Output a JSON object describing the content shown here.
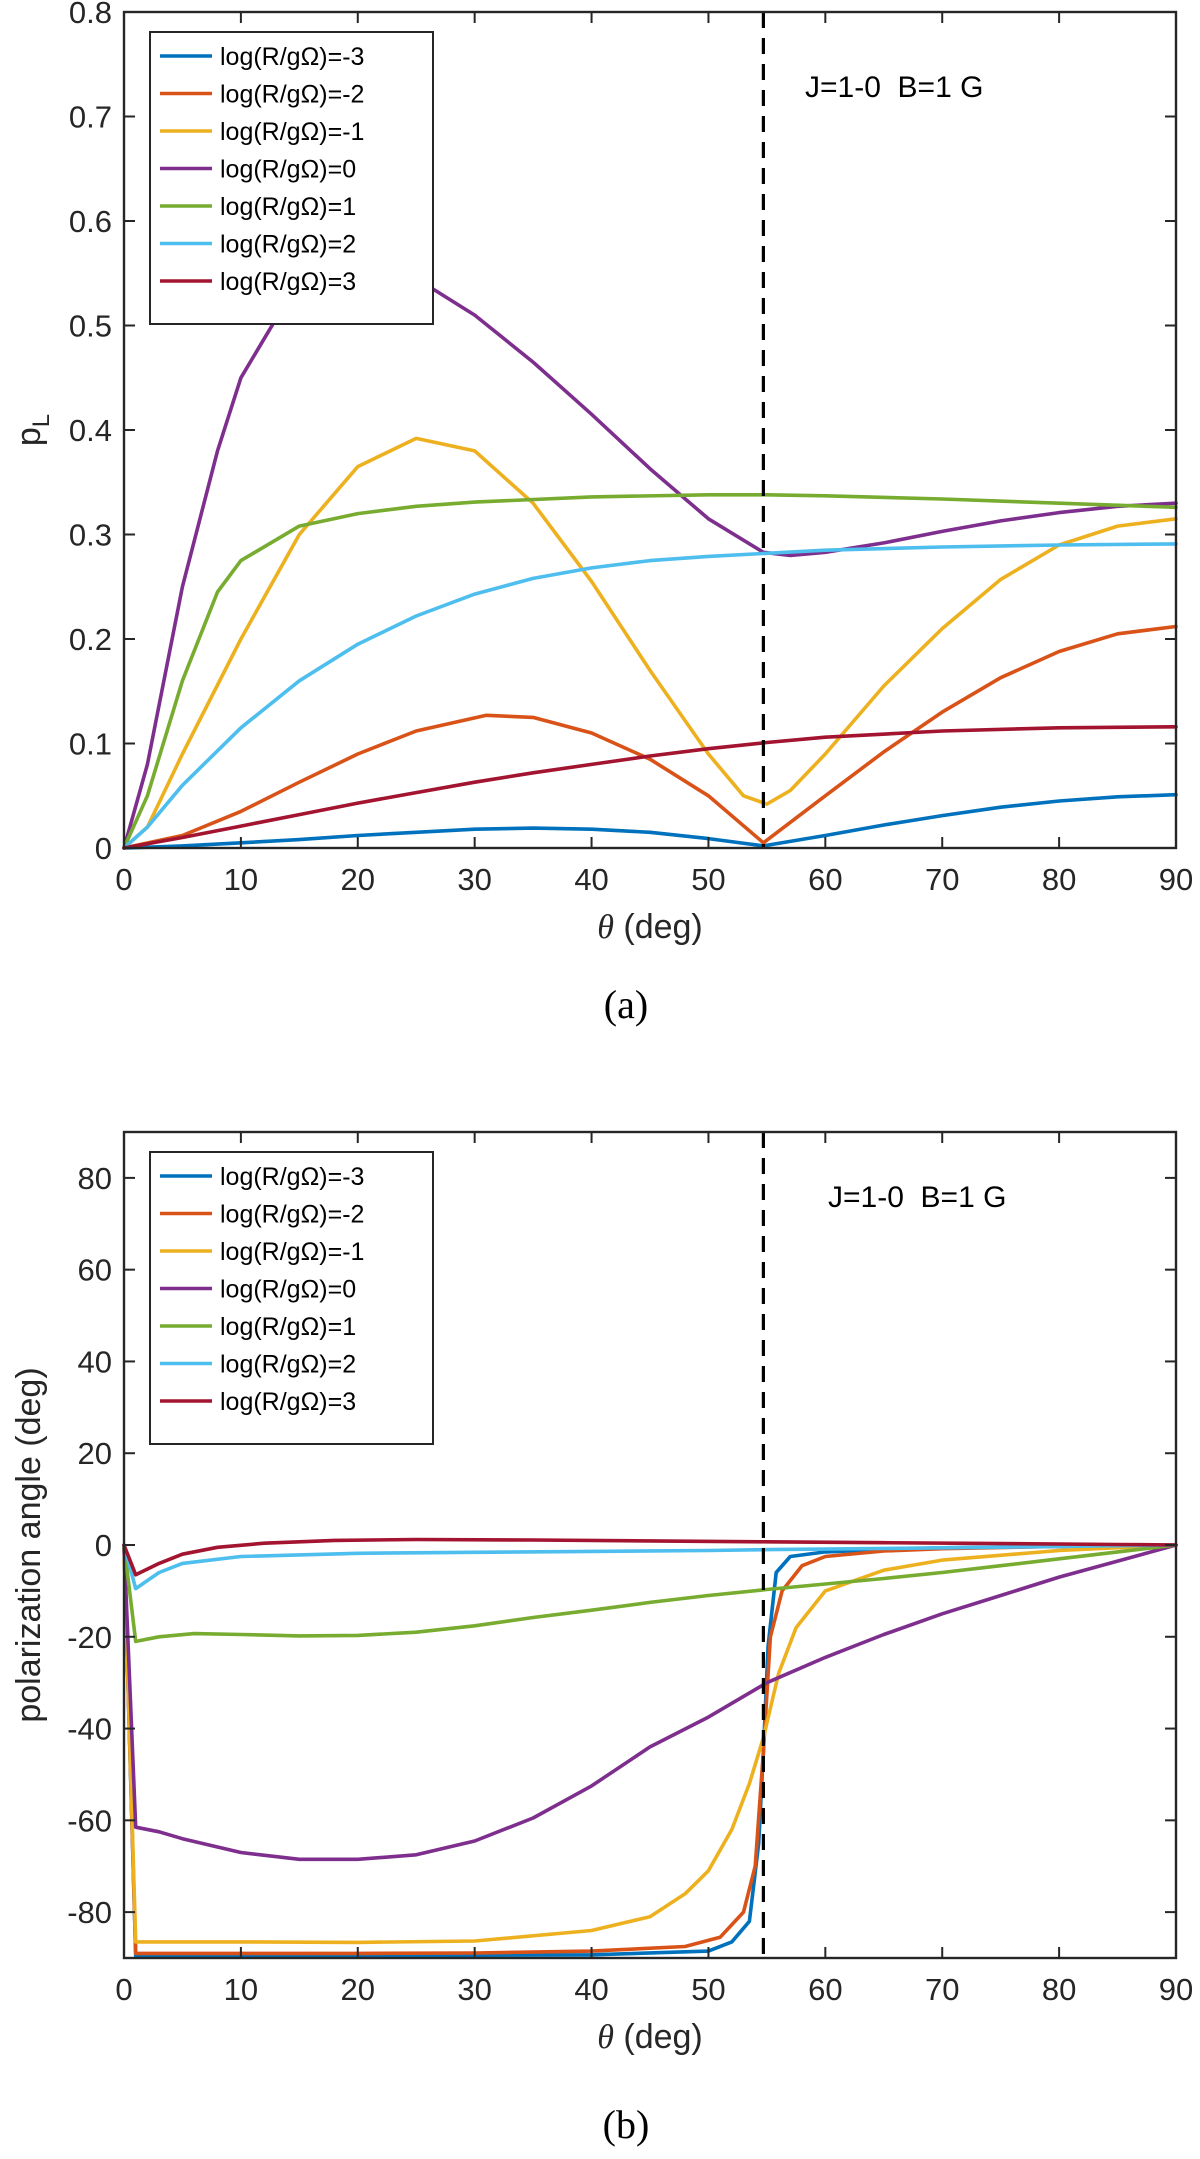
{
  "chart_data": [
    {
      "type": "line",
      "panel_label": "(a)",
      "xlabel_symbol": "θ",
      "xlabel_unit": " (deg)",
      "ylabel_main": "p",
      "ylabel_sub": "L",
      "annotation": "J=1-0  B=1 G",
      "xlim": [
        0,
        90
      ],
      "ylim": [
        0,
        0.8
      ],
      "xticks": [
        0,
        10,
        20,
        30,
        40,
        50,
        60,
        70,
        80,
        90
      ],
      "yticks": [
        0,
        0.1,
        0.2,
        0.3,
        0.4,
        0.5,
        0.6,
        0.7,
        0.8
      ],
      "ytick_labels": [
        "0",
        "0.1",
        "0.2",
        "0.3",
        "0.4",
        "0.5",
        "0.6",
        "0.7",
        "0.8"
      ],
      "vline_x": 54.7,
      "legend_position": "top-left",
      "series": [
        {
          "name": "log(R/gΩ)=-3",
          "color": "#0072BD",
          "x": [
            0,
            5,
            10,
            15,
            20,
            25,
            30,
            35,
            40,
            45,
            50,
            54.7,
            60,
            65,
            70,
            75,
            80,
            85,
            90
          ],
          "y": [
            0,
            0.002,
            0.005,
            0.008,
            0.012,
            0.015,
            0.018,
            0.019,
            0.018,
            0.015,
            0.009,
            0.002,
            0.012,
            0.022,
            0.031,
            0.039,
            0.045,
            0.049,
            0.051
          ]
        },
        {
          "name": "log(R/gΩ)=-2",
          "color": "#D95319",
          "x": [
            0,
            5,
            10,
            15,
            20,
            25,
            31,
            35,
            40,
            45,
            50,
            54.7,
            60,
            65,
            70,
            75,
            80,
            85,
            90
          ],
          "y": [
            0,
            0.012,
            0.035,
            0.063,
            0.09,
            0.112,
            0.127,
            0.125,
            0.11,
            0.085,
            0.05,
            0.005,
            0.05,
            0.092,
            0.13,
            0.163,
            0.188,
            0.205,
            0.212
          ]
        },
        {
          "name": "log(R/gΩ)=-1",
          "color": "#EDB120",
          "x": [
            0,
            2,
            5,
            10,
            15,
            20,
            25,
            30,
            35,
            40,
            45,
            50,
            53,
            55,
            57,
            60,
            65,
            70,
            75,
            80,
            85,
            90
          ],
          "y": [
            0,
            0.02,
            0.09,
            0.2,
            0.3,
            0.365,
            0.392,
            0.38,
            0.33,
            0.255,
            0.17,
            0.09,
            0.05,
            0.042,
            0.055,
            0.09,
            0.155,
            0.21,
            0.257,
            0.29,
            0.308,
            0.315
          ]
        },
        {
          "name": "log(R/gΩ)=0",
          "color": "#7E2F8E",
          "x": [
            0,
            2,
            5,
            8,
            10,
            14,
            18,
            20,
            25,
            30,
            35,
            40,
            45,
            50,
            54.7,
            57,
            60,
            65,
            70,
            75,
            80,
            85,
            90
          ],
          "y": [
            0,
            0.08,
            0.25,
            0.38,
            0.45,
            0.525,
            0.555,
            0.558,
            0.545,
            0.51,
            0.465,
            0.415,
            0.363,
            0.315,
            0.283,
            0.28,
            0.283,
            0.292,
            0.303,
            0.313,
            0.321,
            0.327,
            0.33
          ]
        },
        {
          "name": "log(R/gΩ)=1",
          "color": "#77AC30",
          "x": [
            0,
            2,
            5,
            8,
            10,
            15,
            20,
            25,
            30,
            40,
            50,
            55,
            60,
            70,
            80,
            90
          ],
          "y": [
            0,
            0.05,
            0.16,
            0.245,
            0.275,
            0.308,
            0.32,
            0.327,
            0.331,
            0.336,
            0.338,
            0.338,
            0.337,
            0.334,
            0.33,
            0.326
          ]
        },
        {
          "name": "log(R/gΩ)=2",
          "color": "#4DBEEE",
          "x": [
            0,
            2,
            5,
            10,
            15,
            20,
            25,
            30,
            35,
            40,
            45,
            50,
            55,
            60,
            70,
            80,
            90
          ],
          "y": [
            0,
            0.02,
            0.06,
            0.115,
            0.16,
            0.195,
            0.222,
            0.243,
            0.258,
            0.268,
            0.275,
            0.279,
            0.282,
            0.285,
            0.288,
            0.29,
            0.291
          ]
        },
        {
          "name": "log(R/gΩ)=3",
          "color": "#A2142F",
          "x": [
            0,
            5,
            10,
            15,
            20,
            25,
            30,
            35,
            40,
            45,
            50,
            55,
            60,
            70,
            80,
            90
          ],
          "y": [
            0,
            0.01,
            0.021,
            0.032,
            0.043,
            0.053,
            0.063,
            0.072,
            0.08,
            0.088,
            0.095,
            0.101,
            0.106,
            0.112,
            0.115,
            0.116
          ]
        }
      ]
    },
    {
      "type": "line",
      "panel_label": "(b)",
      "xlabel_symbol": "θ",
      "xlabel_unit": " (deg)",
      "ylabel": "polarization angle (deg)",
      "annotation": "J=1-0  B=1 G",
      "xlim": [
        0,
        90
      ],
      "ylim": [
        -90,
        90
      ],
      "xticks": [
        0,
        10,
        20,
        30,
        40,
        50,
        60,
        70,
        80,
        90
      ],
      "yticks": [
        -80,
        -60,
        -40,
        -20,
        0,
        20,
        40,
        60,
        80
      ],
      "ytick_labels": [
        "-80",
        "-60",
        "-40",
        "-20",
        "0",
        "20",
        "40",
        "60",
        "80"
      ],
      "vline_x": 54.7,
      "legend_position": "top-left",
      "series": [
        {
          "name": "log(R/gΩ)=-3",
          "color": "#0072BD",
          "x": [
            0,
            1,
            5,
            10,
            20,
            30,
            40,
            50,
            52,
            53.5,
            54.3,
            54.7,
            55.1,
            55.8,
            57,
            60,
            65,
            70,
            80,
            90
          ],
          "y": [
            0,
            -89.5,
            -89.5,
            -89.5,
            -89.5,
            -89.4,
            -89.3,
            -88.5,
            -86.5,
            -82,
            -65,
            -45,
            -22,
            -6,
            -2.5,
            -1.5,
            -1,
            -0.6,
            -0.3,
            0
          ]
        },
        {
          "name": "log(R/gΩ)=-2",
          "color": "#D95319",
          "x": [
            0,
            1,
            5,
            10,
            20,
            30,
            40,
            48,
            51,
            53,
            54,
            54.7,
            55.3,
            56.3,
            58,
            60,
            65,
            70,
            80,
            90
          ],
          "y": [
            0,
            -89,
            -89,
            -89,
            -89,
            -88.9,
            -88.5,
            -87.5,
            -85.5,
            -80,
            -70,
            -45,
            -20,
            -10,
            -4.5,
            -2.5,
            -1.3,
            -0.8,
            -0.3,
            0
          ]
        },
        {
          "name": "log(R/gΩ)=-1",
          "color": "#EDB120",
          "x": [
            0,
            1,
            5,
            10,
            20,
            30,
            40,
            45,
            48,
            50,
            52,
            53.5,
            54.7,
            56,
            57.5,
            60,
            65,
            70,
            80,
            90
          ],
          "y": [
            0,
            -86.5,
            -86.5,
            -86.5,
            -86.6,
            -86.3,
            -84,
            -81,
            -76,
            -71,
            -62,
            -52,
            -42,
            -28,
            -18,
            -10,
            -5.5,
            -3.3,
            -1.2,
            0
          ]
        },
        {
          "name": "log(R/gΩ)=0",
          "color": "#7E2F8E",
          "x": [
            0,
            1,
            3,
            5,
            10,
            15,
            20,
            25,
            30,
            35,
            40,
            45,
            50,
            55,
            60,
            65,
            70,
            75,
            80,
            85,
            90
          ],
          "y": [
            0,
            -61.5,
            -62.5,
            -64,
            -67,
            -68.5,
            -68.5,
            -67.5,
            -64.5,
            -59.5,
            -52.5,
            -44,
            -37.5,
            -30,
            -24.5,
            -19.5,
            -15,
            -11,
            -7,
            -3.5,
            0
          ]
        },
        {
          "name": "log(R/gΩ)=1",
          "color": "#77AC30",
          "x": [
            0,
            1,
            3,
            6,
            10,
            15,
            20,
            25,
            30,
            35,
            40,
            45,
            50,
            55,
            60,
            65,
            70,
            75,
            80,
            85,
            90
          ],
          "y": [
            0,
            -21,
            -20,
            -19.3,
            -19.5,
            -19.8,
            -19.7,
            -19,
            -17.6,
            -15.8,
            -14.2,
            -12.5,
            -11,
            -9.7,
            -8.5,
            -7.3,
            -6,
            -4.5,
            -3,
            -1.5,
            0
          ]
        },
        {
          "name": "log(R/gΩ)=2",
          "color": "#4DBEEE",
          "x": [
            0,
            1,
            3,
            5,
            10,
            20,
            30,
            40,
            50,
            55,
            60,
            70,
            80,
            90
          ],
          "y": [
            0,
            -9.5,
            -6,
            -4,
            -2.5,
            -1.8,
            -1.6,
            -1.4,
            -1.2,
            -1,
            -0.9,
            -0.6,
            -0.3,
            0
          ]
        },
        {
          "name": "log(R/gΩ)=3",
          "color": "#A2142F",
          "x": [
            0,
            1,
            3,
            5,
            8,
            12,
            18,
            25,
            35,
            45,
            55,
            65,
            75,
            85,
            90
          ],
          "y": [
            0,
            -6.5,
            -4,
            -2,
            -0.5,
            0.4,
            1,
            1.2,
            1.1,
            0.9,
            0.7,
            0.5,
            0.3,
            0.1,
            0
          ]
        }
      ]
    }
  ]
}
